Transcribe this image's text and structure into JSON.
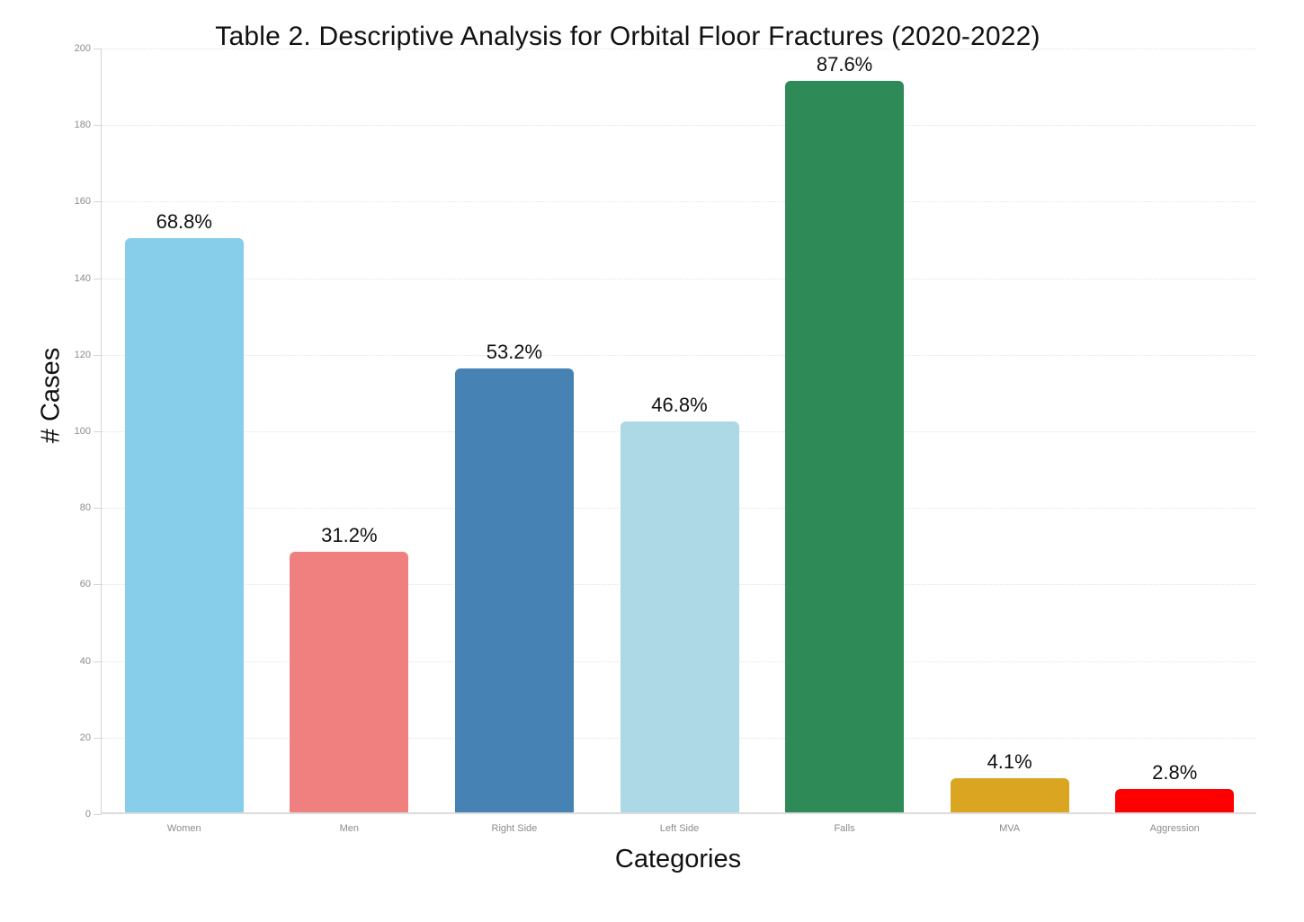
{
  "chart_data": {
    "type": "bar",
    "title": "Table 2. Descriptive Analysis for Orbital Floor Fractures (2020-2022)",
    "xlabel": "Categories",
    "ylabel": "# Cases",
    "ylim": [
      0,
      200
    ],
    "yticks": [
      0,
      20,
      40,
      60,
      80,
      100,
      120,
      140,
      160,
      180,
      200
    ],
    "grid": "horizontal-dotted",
    "legend": "none",
    "categories": [
      "Women",
      "Men",
      "Right Side",
      "Left Side",
      "Falls",
      "MVA",
      "Aggression"
    ],
    "values": [
      150,
      68,
      116,
      102,
      191,
      9,
      6
    ],
    "bar_labels": [
      "68.8%",
      "31.2%",
      "53.2%",
      "46.8%",
      "87.6%",
      "4.1%",
      "2.8%"
    ],
    "bar_colors": [
      "#87CEEB",
      "#F08080",
      "#4682B4",
      "#ADD8E6",
      "#2E8B57",
      "#DAA520",
      "#FF0000"
    ]
  }
}
